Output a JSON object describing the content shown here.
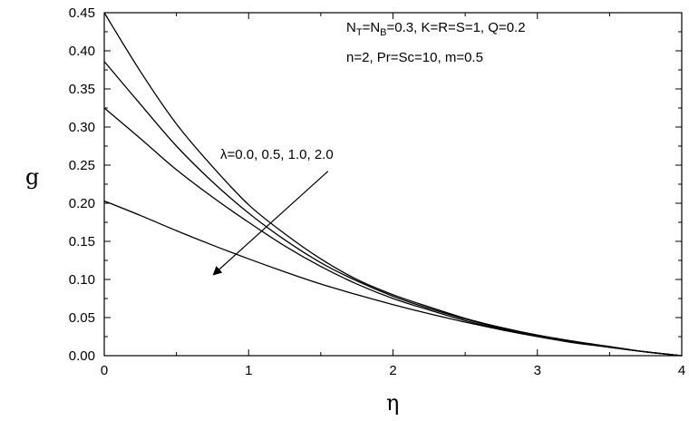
{
  "chart_data": {
    "type": "line",
    "title": "",
    "xlabel": "η",
    "ylabel": "g",
    "xlim": [
      0,
      4
    ],
    "ylim": [
      0,
      0.45
    ],
    "x_ticks": [
      "0",
      "1",
      "2",
      "3",
      "4"
    ],
    "y_ticks": [
      "0.00",
      "0.05",
      "0.10",
      "0.15",
      "0.20",
      "0.25",
      "0.30",
      "0.35",
      "0.40",
      "0.45"
    ],
    "grid": false,
    "legend": "none",
    "annotations": {
      "params_line1": {
        "parts": [
          {
            "text": "N",
            "sub": false
          },
          {
            "text": "T",
            "sub": true
          },
          {
            "text": "=N",
            "sub": false
          },
          {
            "text": "B",
            "sub": true
          },
          {
            "text": "=0.3, K=R=S=1, Q=0.2",
            "sub": false
          }
        ]
      },
      "params_line2": "n=2, Pr=Sc=10, m=0.5",
      "lambda_label": "λ=0.0, 0.5, 1.0, 2.0"
    },
    "series": [
      {
        "values": [
          [
            0,
            0.45
          ],
          [
            0.25,
            0.373
          ],
          [
            0.5,
            0.304
          ],
          [
            0.75,
            0.248
          ],
          [
            1.0,
            0.198
          ],
          [
            1.25,
            0.16
          ],
          [
            1.5,
            0.127
          ],
          [
            1.75,
            0.1
          ],
          [
            2.0,
            0.08
          ],
          [
            2.25,
            0.064
          ],
          [
            2.5,
            0.049
          ],
          [
            2.75,
            0.037
          ],
          [
            3.0,
            0.027
          ],
          [
            3.25,
            0.019
          ],
          [
            3.5,
            0.012
          ],
          [
            3.75,
            0.005
          ],
          [
            4.0,
            0.0
          ]
        ]
      },
      {
        "values": [
          [
            0,
            0.386
          ],
          [
            0.25,
            0.33
          ],
          [
            0.5,
            0.275
          ],
          [
            0.75,
            0.228
          ],
          [
            1.0,
            0.187
          ],
          [
            1.25,
            0.152
          ],
          [
            1.5,
            0.122
          ],
          [
            1.75,
            0.098
          ],
          [
            2.0,
            0.078
          ],
          [
            2.25,
            0.062
          ],
          [
            2.5,
            0.048
          ],
          [
            2.75,
            0.036
          ],
          [
            3.0,
            0.026
          ],
          [
            3.25,
            0.018
          ],
          [
            3.5,
            0.011
          ],
          [
            3.75,
            0.005
          ],
          [
            4.0,
            0.0
          ]
        ]
      },
      {
        "values": [
          [
            0,
            0.325
          ],
          [
            0.25,
            0.285
          ],
          [
            0.5,
            0.244
          ],
          [
            0.75,
            0.208
          ],
          [
            1.0,
            0.175
          ],
          [
            1.25,
            0.144
          ],
          [
            1.5,
            0.117
          ],
          [
            1.75,
            0.094
          ],
          [
            2.0,
            0.075
          ],
          [
            2.25,
            0.06
          ],
          [
            2.5,
            0.046
          ],
          [
            2.75,
            0.035
          ],
          [
            3.0,
            0.026
          ],
          [
            3.25,
            0.018
          ],
          [
            3.5,
            0.011
          ],
          [
            3.75,
            0.005
          ],
          [
            4.0,
            0.0
          ]
        ]
      },
      {
        "values": [
          [
            0,
            0.203
          ],
          [
            0.25,
            0.184
          ],
          [
            0.5,
            0.164
          ],
          [
            0.75,
            0.145
          ],
          [
            1.0,
            0.127
          ],
          [
            1.25,
            0.11
          ],
          [
            1.5,
            0.094
          ],
          [
            1.75,
            0.08
          ],
          [
            2.0,
            0.067
          ],
          [
            2.25,
            0.055
          ],
          [
            2.5,
            0.044
          ],
          [
            2.75,
            0.034
          ],
          [
            3.0,
            0.025
          ],
          [
            3.25,
            0.017
          ],
          [
            3.5,
            0.011
          ],
          [
            3.75,
            0.005
          ],
          [
            4.0,
            0.0
          ]
        ]
      }
    ],
    "arrow": {
      "from": [
        1.55,
        0.242
      ],
      "to": [
        0.76,
        0.107
      ]
    }
  }
}
